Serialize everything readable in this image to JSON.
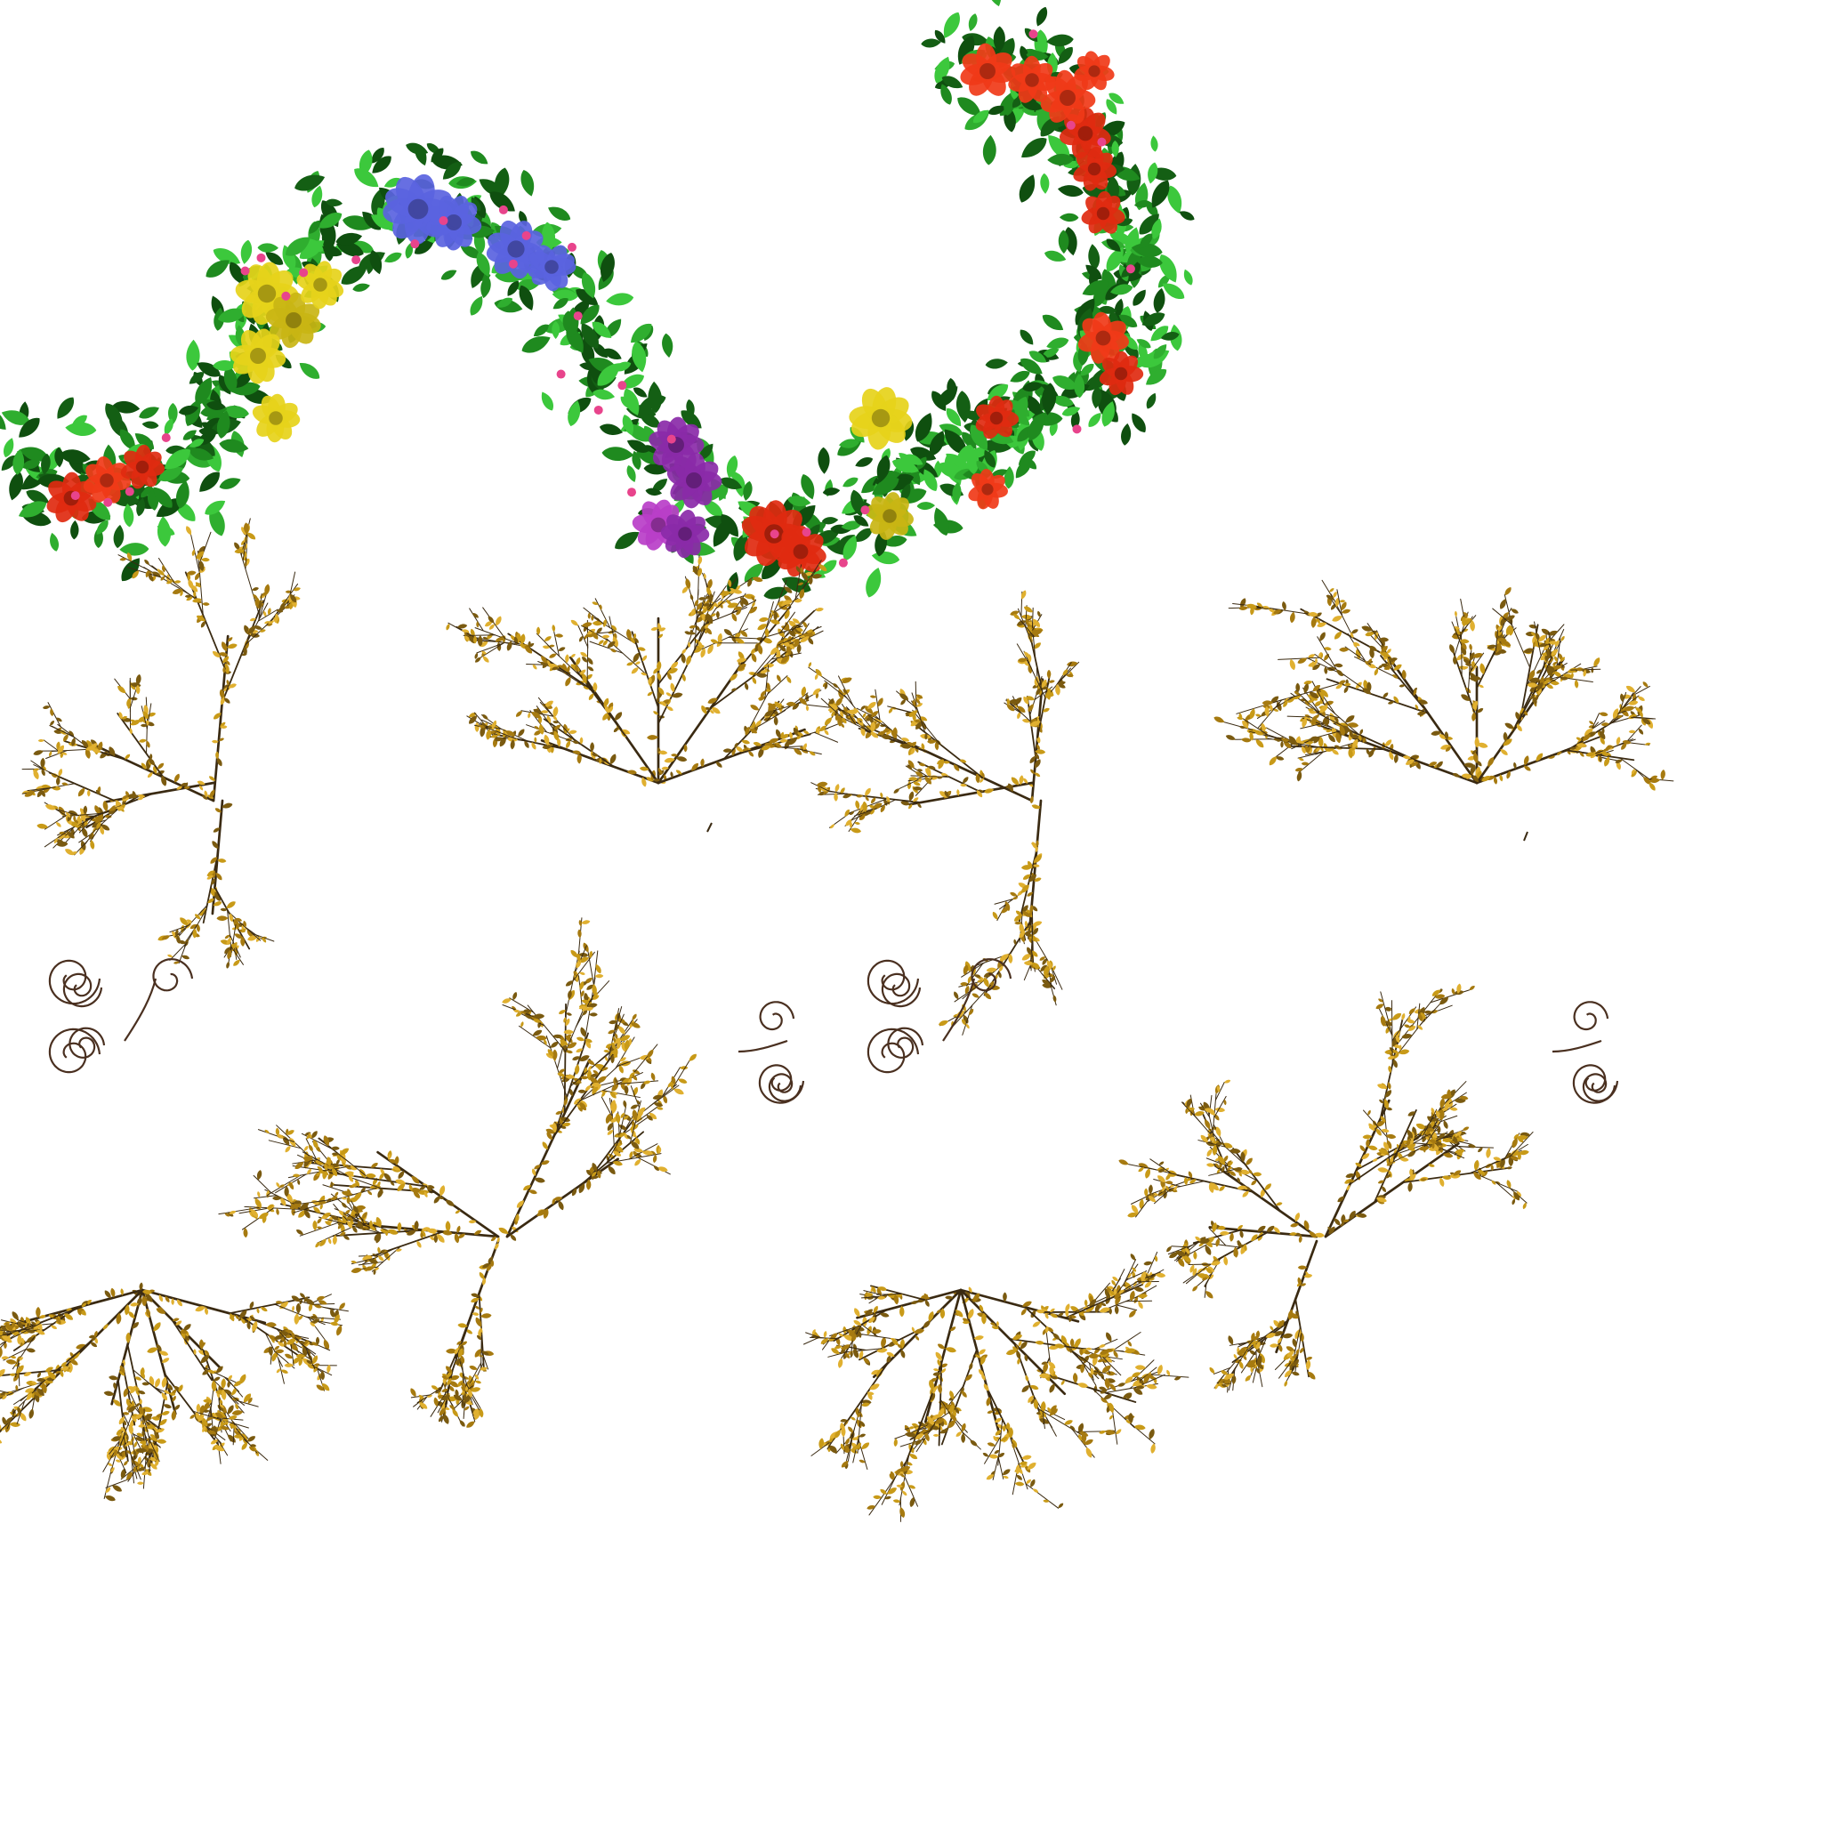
{
  "sheet": {
    "background": "#ffffff",
    "garland": {
      "leaf_colors": [
        "#1f8a1f",
        "#2fae2f",
        "#145f14",
        "#3cc83c",
        "#0f4f0f"
      ],
      "flower_colors": {
        "red": "#e02a10",
        "orange_red": "#f03a18",
        "yellow": "#e6d21a",
        "mustard": "#c9b514",
        "blue": "#5a63e0",
        "purple": "#8a2aa8",
        "magenta": "#b83ec8",
        "pink_bud": "#e8448c"
      }
    },
    "sprigs": {
      "stem_color": "#3a2a12",
      "leaf_colors": [
        "#c89a18",
        "#a67a10",
        "#e0b030",
        "#7a5a10"
      ]
    },
    "curls": {
      "stroke_color": "#4a3020"
    }
  }
}
